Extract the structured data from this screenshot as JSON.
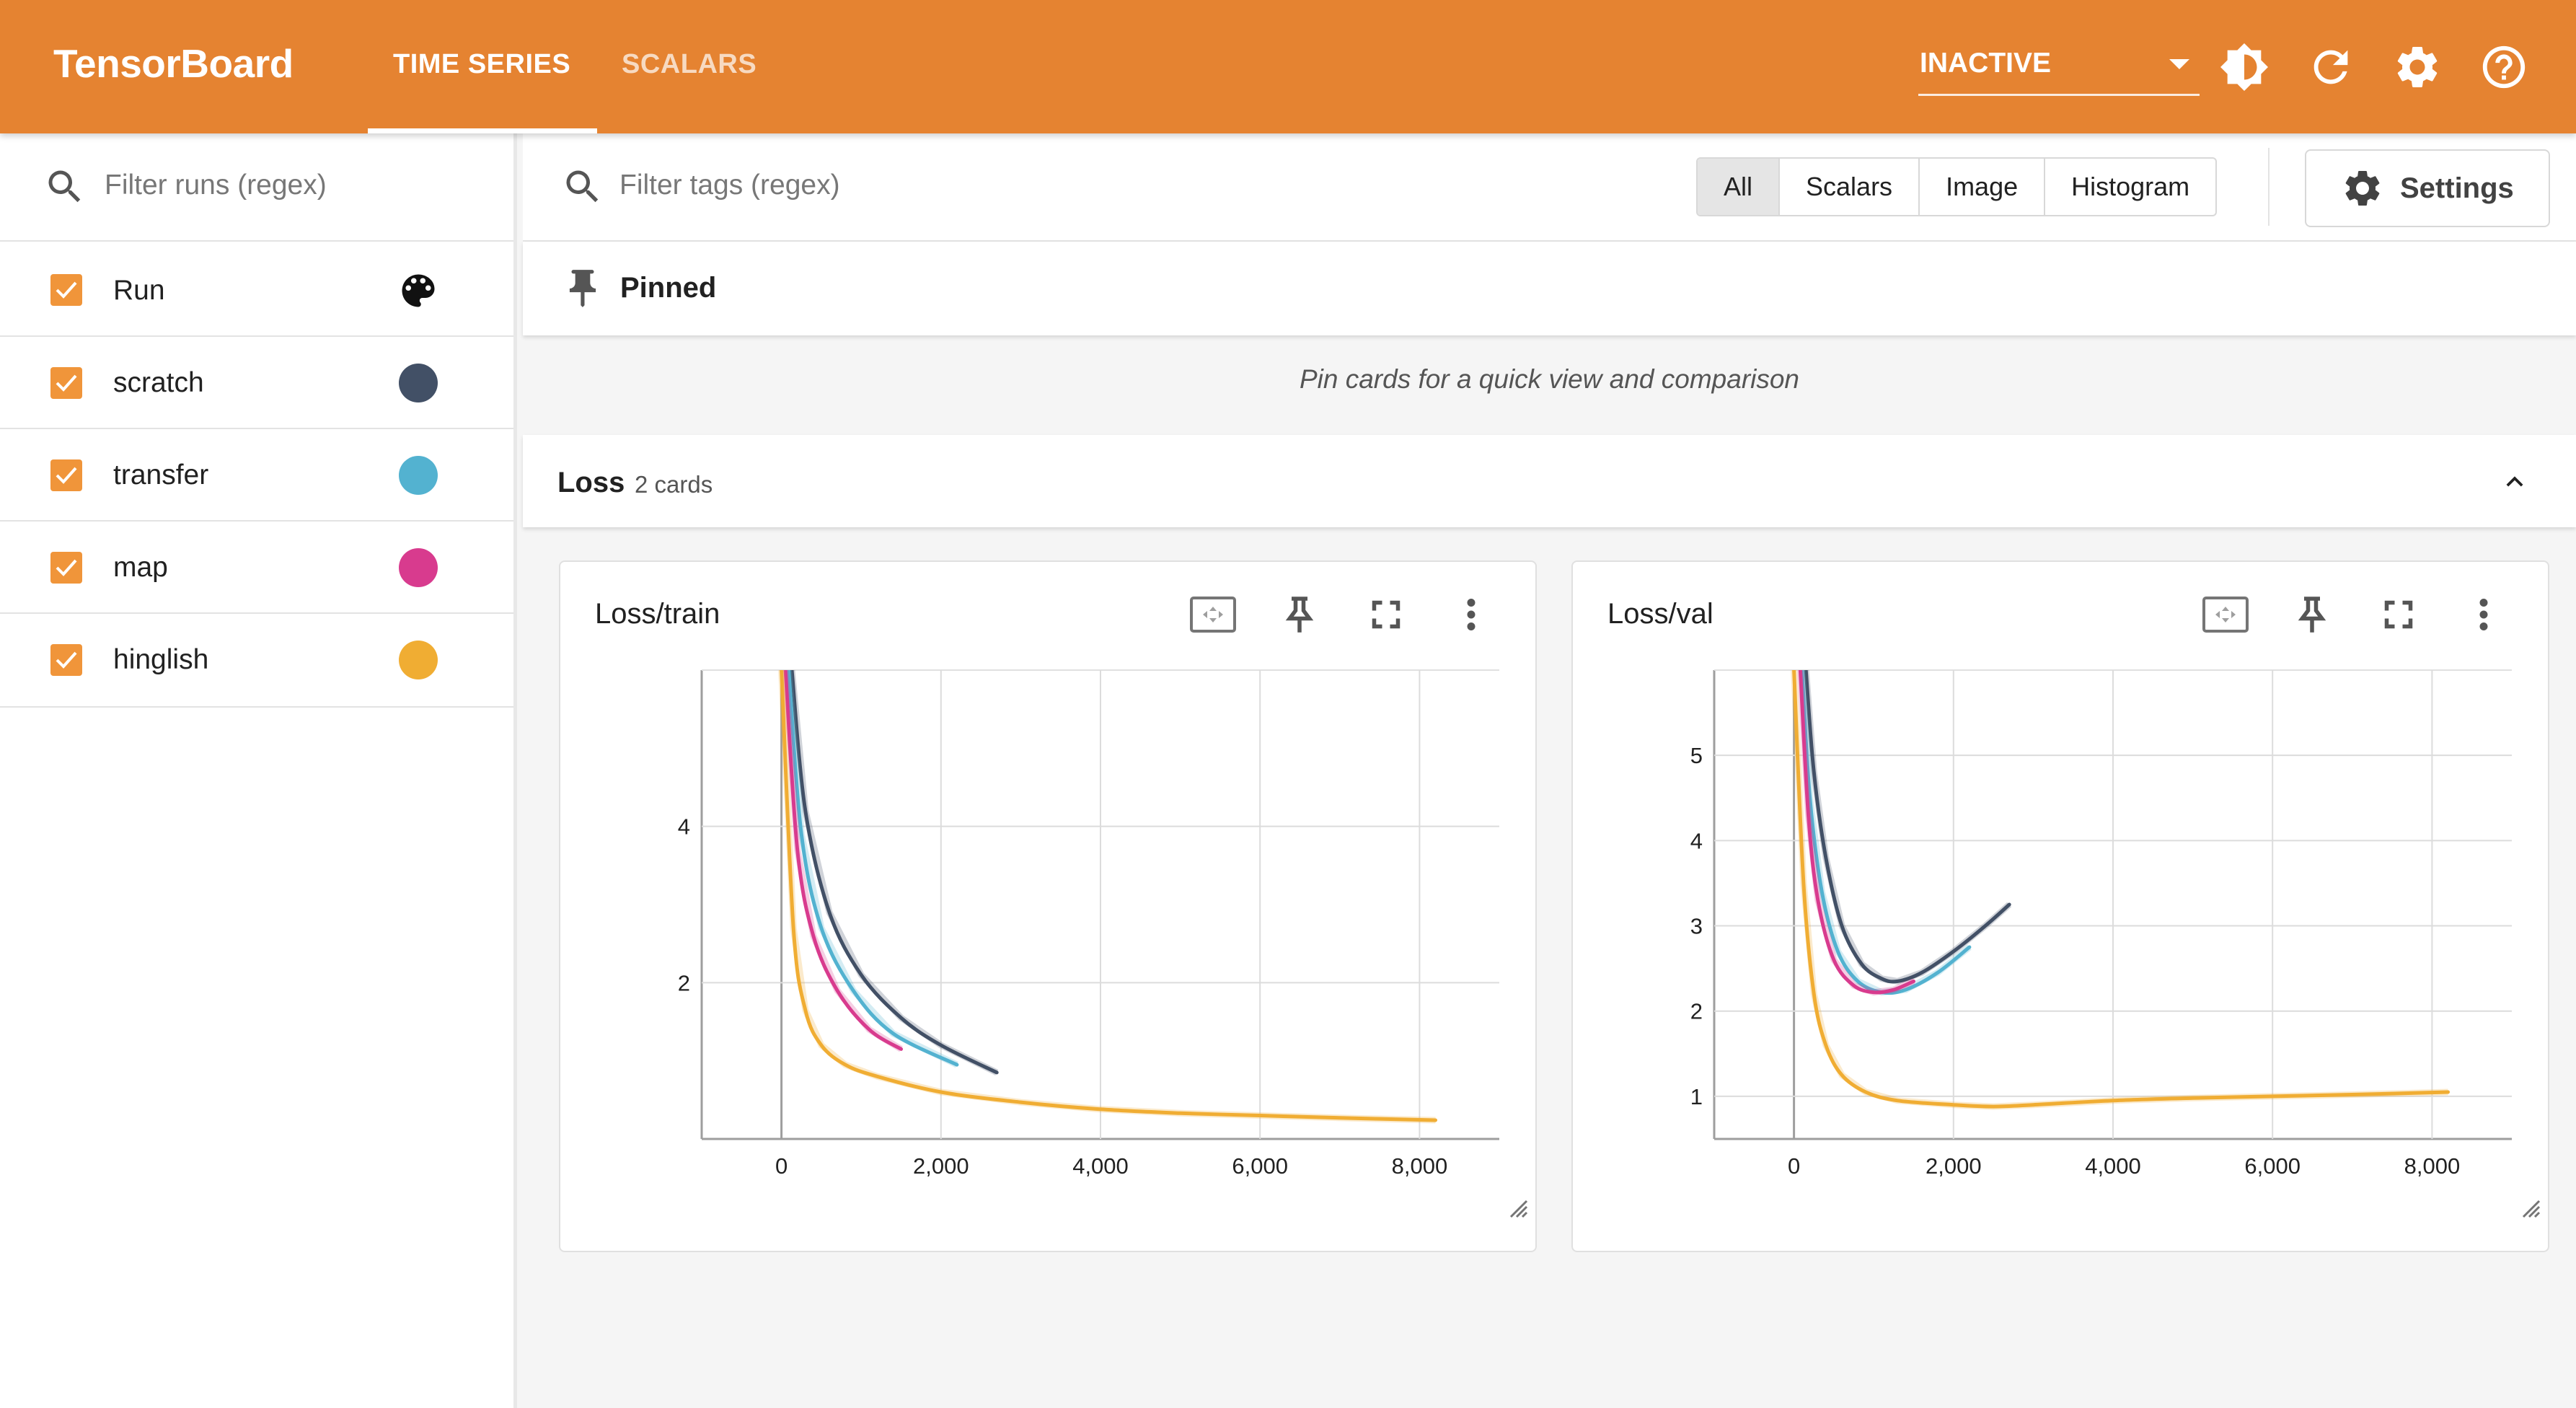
{
  "header": {
    "brand": "TensorBoard",
    "tabs": [
      {
        "label": "TIME SERIES",
        "active": true
      },
      {
        "label": "SCALARS",
        "active": false
      }
    ],
    "reload_select": "INACTIVE",
    "icons": [
      "brightness-icon",
      "refresh-icon",
      "settings-gear-icon",
      "help-icon"
    ],
    "bg_color": "#e58331"
  },
  "sidebar": {
    "filter_placeholder": "Filter runs (regex)",
    "header_label": "Run",
    "runs": [
      {
        "label": "scratch",
        "color": "#425066",
        "checked": true
      },
      {
        "label": "transfer",
        "color": "#53b2d0",
        "checked": true
      },
      {
        "label": "map",
        "color": "#d83b8e",
        "checked": true
      },
      {
        "label": "hinglish",
        "color": "#f0ad33",
        "checked": true
      }
    ]
  },
  "toolbar": {
    "filter_placeholder": "Filter tags (regex)",
    "type_filters": [
      "All",
      "Scalars",
      "Image",
      "Histogram"
    ],
    "active_filter": "All",
    "settings_label": "Settings"
  },
  "pinned": {
    "title": "Pinned",
    "empty_message": "Pin cards for a quick view and comparison"
  },
  "group": {
    "name": "Loss",
    "count_label": "2 cards"
  },
  "cards": [
    {
      "title": "Loss/train"
    },
    {
      "title": "Loss/val"
    }
  ],
  "chart_data": [
    {
      "type": "line",
      "title": "Loss/train",
      "xlabel": "",
      "ylabel": "",
      "xlim": [
        -1000,
        9000
      ],
      "ylim": [
        0,
        6
      ],
      "x_ticks": [
        "0",
        "2,000",
        "4,000",
        "6,000",
        "8,000"
      ],
      "y_ticks": [
        "2",
        "4"
      ],
      "grid": true,
      "series": [
        {
          "name": "scratch",
          "color": "#425066",
          "x": [
            130,
            300,
            600,
            1000,
            1500,
            2000,
            2700
          ],
          "y": [
            6.0,
            4.2,
            2.9,
            2.1,
            1.55,
            1.2,
            0.85
          ]
        },
        {
          "name": "transfer",
          "color": "#53b2d0",
          "x": [
            90,
            250,
            500,
            900,
            1400,
            2200
          ],
          "y": [
            6.0,
            3.9,
            2.7,
            1.9,
            1.35,
            0.95
          ]
        },
        {
          "name": "map",
          "color": "#d83b8e",
          "x": [
            50,
            200,
            400,
            700,
            1100,
            1500
          ],
          "y": [
            6.0,
            3.7,
            2.6,
            1.9,
            1.4,
            1.15
          ]
        },
        {
          "name": "hinglish",
          "color": "#f0ad33",
          "x": [
            0,
            150,
            300,
            500,
            800,
            1200,
            2000,
            3000,
            4000,
            5000,
            6000,
            7000,
            8200
          ],
          "y": [
            6.0,
            2.7,
            1.65,
            1.2,
            0.95,
            0.8,
            0.6,
            0.47,
            0.38,
            0.33,
            0.3,
            0.27,
            0.24
          ]
        }
      ]
    },
    {
      "type": "line",
      "title": "Loss/val",
      "xlabel": "",
      "ylabel": "",
      "xlim": [
        -1000,
        9000
      ],
      "ylim": [
        0.5,
        6.0
      ],
      "x_ticks": [
        "0",
        "2,000",
        "4,000",
        "6,000",
        "8,000"
      ],
      "y_ticks": [
        "1",
        "2",
        "3",
        "4",
        "5"
      ],
      "grid": true,
      "series": [
        {
          "name": "scratch",
          "color": "#425066",
          "x": [
            150,
            250,
            400,
            600,
            850,
            1100,
            1300,
            1600,
            2000,
            2400,
            2700
          ],
          "y": [
            6.0,
            4.8,
            3.8,
            3.0,
            2.55,
            2.38,
            2.35,
            2.45,
            2.7,
            3.0,
            3.25
          ]
        },
        {
          "name": "transfer",
          "color": "#53b2d0",
          "x": [
            100,
            200,
            350,
            550,
            800,
            1100,
            1400,
            1800,
            2200
          ],
          "y": [
            6.0,
            4.5,
            3.4,
            2.7,
            2.35,
            2.22,
            2.25,
            2.45,
            2.75
          ]
        },
        {
          "name": "map",
          "color": "#d83b8e",
          "x": [
            80,
            180,
            300,
            500,
            750,
            1000,
            1250,
            1500
          ],
          "y": [
            6.0,
            4.3,
            3.3,
            2.6,
            2.3,
            2.22,
            2.25,
            2.35
          ]
        },
        {
          "name": "hinglish",
          "color": "#f0ad33",
          "x": [
            0,
            120,
            250,
            400,
            600,
            900,
            1300,
            2000,
            2500,
            3000,
            4000,
            5000,
            6000,
            7000,
            8200
          ],
          "y": [
            6.0,
            3.5,
            2.2,
            1.6,
            1.25,
            1.05,
            0.95,
            0.9,
            0.88,
            0.9,
            0.95,
            0.98,
            1.0,
            1.02,
            1.05
          ]
        }
      ]
    }
  ]
}
